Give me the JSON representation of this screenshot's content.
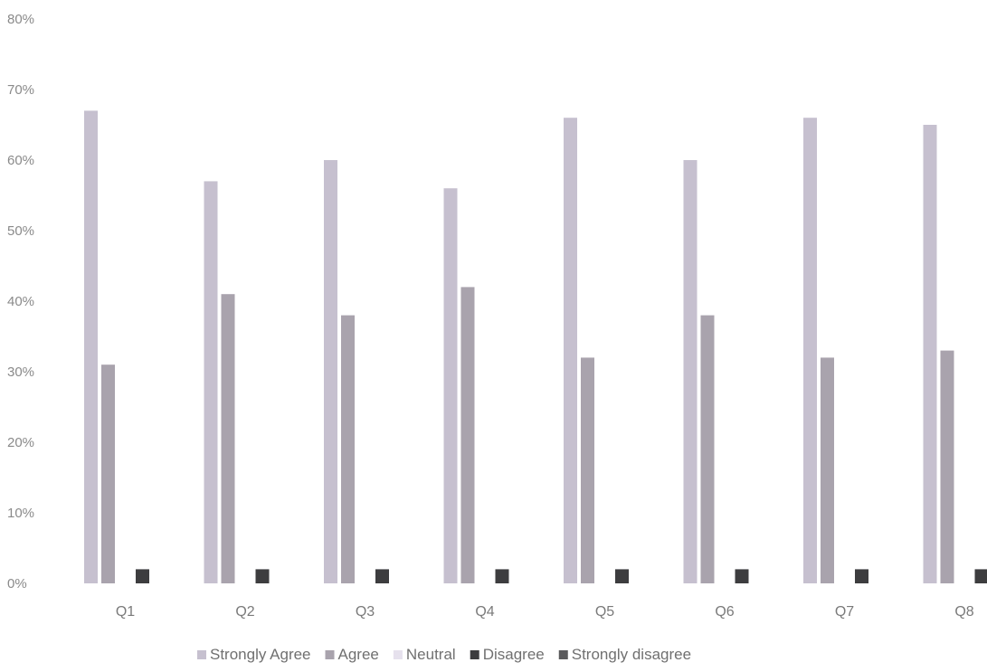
{
  "chart_data": {
    "type": "bar",
    "title": "",
    "xlabel": "",
    "ylabel": "",
    "ylim": [
      0,
      80
    ],
    "yticks": [
      "0%",
      "10%",
      "20%",
      "30%",
      "40%",
      "50%",
      "60%",
      "70%",
      "80%"
    ],
    "categories": [
      "Q1",
      "Q2",
      "Q3",
      "Q4",
      "Q5",
      "Q6",
      "Q7",
      "Q8"
    ],
    "grid": false,
    "legend_position": "bottom",
    "series": [
      {
        "name": "Strongly Agree",
        "color": "#c6c0cf",
        "values": [
          67,
          57,
          60,
          56,
          66,
          60,
          66,
          65
        ]
      },
      {
        "name": "Agree",
        "color": "#a9a3ad",
        "values": [
          31,
          41,
          38,
          42,
          32,
          38,
          32,
          33
        ]
      },
      {
        "name": "Neutral",
        "color": "#e6e1ed",
        "values": [
          0,
          0,
          0,
          0,
          0,
          0,
          0,
          0
        ]
      },
      {
        "name": "Disagree",
        "color": "#3d3d3f",
        "values": [
          2,
          2,
          2,
          2,
          2,
          2,
          2,
          2
        ]
      },
      {
        "name": "Strongly disagree",
        "color": "#5a5a5c",
        "values": [
          0,
          0,
          0,
          0,
          0,
          0,
          0,
          0
        ]
      }
    ]
  }
}
